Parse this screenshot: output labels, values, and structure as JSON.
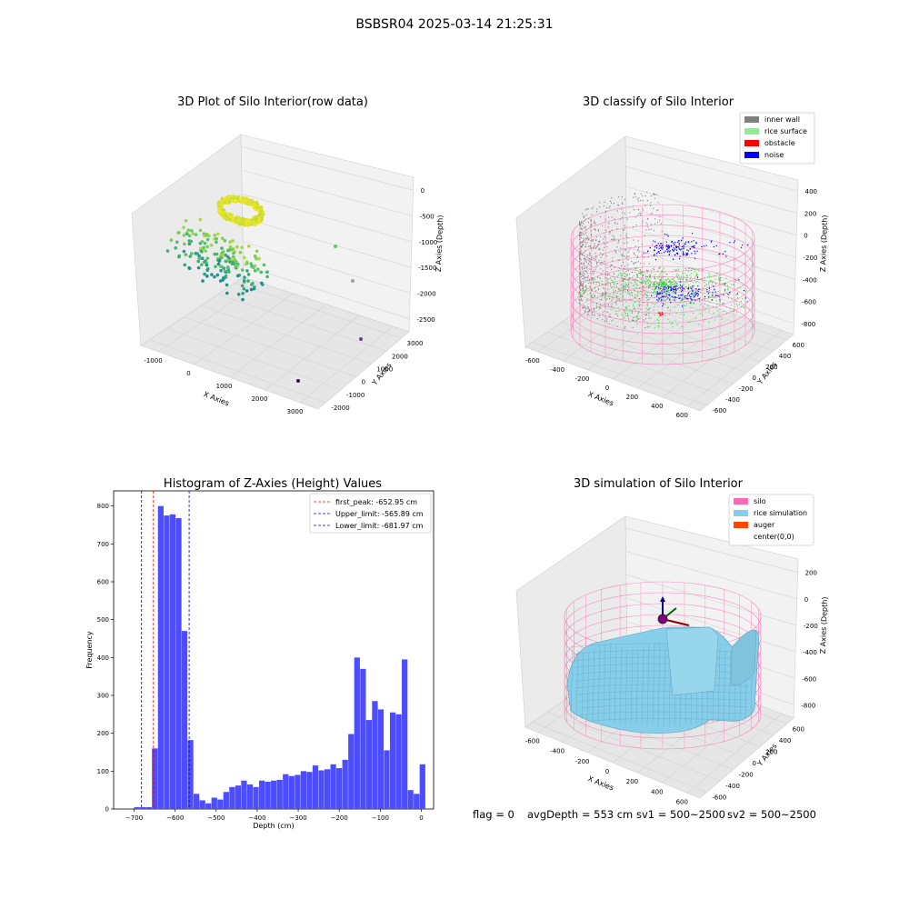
{
  "figure": {
    "suptitle": "BSBSR04 2025-03-14 21:25:31",
    "footer": {
      "flag": "flag = 0",
      "avg_depth": "avgDepth = 553 cm",
      "sv1": "sv1 = 500~2500",
      "sv2": "sv2 = 500~2500"
    }
  },
  "colors": {
    "pane": "#f2f2f2",
    "grid": "#d3d3d3",
    "inner_wall": "#808080",
    "rice_surface": "#90ee90",
    "obstacle": "#ff0000",
    "noise": "#0000ff",
    "silo": "#ff69b4",
    "rice_simulation": "#87ceeb",
    "auger": "#ff4500",
    "hist_bar": "#4d4dff",
    "first_peak_line": "#ff0000",
    "limit_line": "#0000cd"
  },
  "chart_data": [
    {
      "type": "scatter",
      "title": "3D Plot of Silo Interior(row data)",
      "xlabel": "X Axies",
      "ylabel": "Y Axies",
      "zlabel": "Z Axies (Depth)",
      "x_ticks": [
        "-1000",
        "0",
        "1000",
        "2000",
        "3000"
      ],
      "y_ticks": [
        "-2000",
        "-1000",
        "0",
        "1000",
        "2000",
        "3000"
      ],
      "z_ticks": [
        "0",
        "-500",
        "-1000",
        "-1500",
        "-2000",
        "-2500"
      ],
      "colormap": "viridis",
      "cluster": {
        "x": [
          -500,
          500
        ],
        "y": [
          -600,
          600
        ],
        "z": [
          -1300,
          -600
        ]
      },
      "outliers": [
        {
          "x": 1500,
          "y": 2400,
          "z": -1300
        },
        {
          "x": 2600,
          "y": 1900,
          "z": -2400
        },
        {
          "x": 3100,
          "y": 1000,
          "z": -2700
        },
        {
          "x": 3300,
          "y": -400,
          "z": -2800
        }
      ]
    },
    {
      "type": "scatter",
      "title": "3D classify of Silo Interior",
      "xlabel": "X Axies",
      "ylabel": "Y Axies",
      "zlabel": "Z Axies (Depth)",
      "x_ticks": [
        "-600",
        "-400",
        "-200",
        "0",
        "200",
        "400",
        "600"
      ],
      "y_ticks": [
        "-600",
        "-400",
        "-200",
        "0",
        "200",
        "400",
        "600"
      ],
      "z_ticks": [
        "400",
        "200",
        "0",
        "-200",
        "-400",
        "-600",
        "-800"
      ],
      "legend": [
        "inner wall",
        "rice surface",
        "obstacle",
        "noise"
      ],
      "legend_loc": "upper right"
    },
    {
      "type": "bar",
      "title": "Histogram of Z-Axies (Height) Values",
      "xlabel": "Depth (cm)",
      "ylabel": "Frequency",
      "x_ticks": [
        "−700",
        "−600",
        "−500",
        "−400",
        "−300",
        "−200",
        "−100",
        "0"
      ],
      "y_ticks": [
        "0",
        "100",
        "200",
        "300",
        "400",
        "500",
        "600",
        "700",
        "800"
      ],
      "xlim": [
        -750,
        30
      ],
      "ylim": [
        0,
        840
      ],
      "bin_start": -700,
      "bin_width": 14.5,
      "values": [
        5,
        5,
        5,
        160,
        800,
        775,
        778,
        768,
        470,
        182,
        40,
        23,
        15,
        30,
        25,
        45,
        58,
        62,
        75,
        65,
        58,
        75,
        72,
        75,
        77,
        92,
        87,
        90,
        100,
        98,
        115,
        102,
        105,
        118,
        108,
        130,
        198,
        400,
        370,
        235,
        285,
        263,
        155,
        255,
        250,
        395,
        50,
        40,
        118
      ],
      "vlines": [
        {
          "label": "first_peak: -652.95 cm",
          "x": -652.95,
          "style": "red"
        },
        {
          "label": "Upper_limit: -565.89 cm",
          "x": -565.89,
          "style": "blue"
        },
        {
          "label": "Lower_limit: -681.97 cm",
          "x": -681.97,
          "style": "blue"
        }
      ],
      "legend_loc": "upper right"
    },
    {
      "type": "surface",
      "title": "3D simulation of Silo Interior",
      "xlabel": "X Axies",
      "ylabel": "Y Axies",
      "zlabel": "Z Axies (Depth)",
      "x_ticks": [
        "-600",
        "-400",
        "-200",
        "0",
        "200",
        "400",
        "600"
      ],
      "y_ticks": [
        "-600",
        "-400",
        "-200",
        "0",
        "200",
        "400",
        "600"
      ],
      "z_ticks": [
        "200",
        "0",
        "-200",
        "-400",
        "-600",
        "-800"
      ],
      "legend": [
        "silo",
        "rice simulation",
        "auger",
        "center(0,0)"
      ],
      "legend_loc": "upper right"
    }
  ]
}
